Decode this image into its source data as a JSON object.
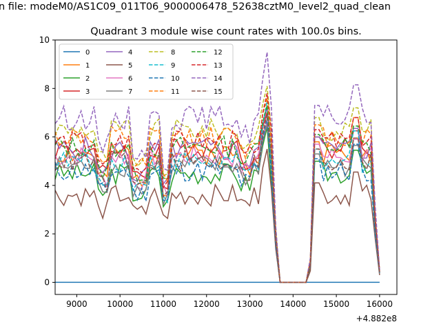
{
  "chart_data": {
    "type": "line",
    "suptitle": "n file: modeM0/AS1C09_011T06_9000006478_52638cztM0_level2_quad_clean",
    "title": "Quadrant 3 module wise count rates with 100.0s bins.",
    "xlabel": "",
    "ylabel": "",
    "offset_label": "+4.882e8",
    "xlim": [
      8500,
      16400
    ],
    "ylim": [
      -0.5,
      10
    ],
    "xticks": [
      9000,
      10000,
      11000,
      12000,
      13000,
      14000,
      15000,
      16000
    ],
    "xtick_labels": [
      "9000",
      "10000",
      "11000",
      "12000",
      "13000",
      "14000",
      "15000",
      "16000"
    ],
    "yticks": [
      0,
      2,
      4,
      6,
      8,
      10
    ],
    "ytick_labels": [
      "0",
      "2",
      "4",
      "6",
      "8",
      "10"
    ],
    "legend_position": "upper-left",
    "x_note": "x values are offsets from +4.882e8 s; 100 s bins from 8500 to 16000",
    "series": [
      {
        "name": "0",
        "color": "#1f77b4",
        "dashed": false,
        "level": 0.0,
        "amp": 0.0,
        "seed": 1,
        "max": 0.0
      },
      {
        "name": "1",
        "color": "#ff7f0e",
        "dashed": false,
        "level": 5.3,
        "amp": 0.45,
        "seed": 2,
        "max": 6.6
      },
      {
        "name": "2",
        "color": "#2ca02c",
        "dashed": false,
        "level": 4.5,
        "amp": 0.45,
        "seed": 3,
        "max": 6.4
      },
      {
        "name": "3",
        "color": "#d62728",
        "dashed": false,
        "level": 5.5,
        "amp": 0.45,
        "seed": 4,
        "max": 7.0
      },
      {
        "name": "4",
        "color": "#9467bd",
        "dashed": false,
        "level": 5.5,
        "amp": 0.5,
        "seed": 5,
        "max": 7.2
      },
      {
        "name": "5",
        "color": "#8c564b",
        "dashed": false,
        "level": 3.6,
        "amp": 0.45,
        "seed": 6,
        "max": 5.5
      },
      {
        "name": "6",
        "color": "#e377c2",
        "dashed": false,
        "level": 5.2,
        "amp": 0.45,
        "seed": 7,
        "max": 6.6
      },
      {
        "name": "7",
        "color": "#7f7f7f",
        "dashed": false,
        "level": 4.8,
        "amp": 0.45,
        "seed": 8,
        "max": 6.5
      },
      {
        "name": "8",
        "color": "#bcbd22",
        "dashed": true,
        "level": 6.3,
        "amp": 0.45,
        "seed": 9,
        "max": 8.1
      },
      {
        "name": "9",
        "color": "#17becf",
        "dashed": true,
        "level": 5.0,
        "amp": 0.45,
        "seed": 10,
        "max": 7.5
      },
      {
        "name": "10",
        "color": "#1f77b4",
        "dashed": true,
        "level": 4.6,
        "amp": 0.45,
        "seed": 11,
        "max": 6.8
      },
      {
        "name": "11",
        "color": "#ff7f0e",
        "dashed": true,
        "level": 6.0,
        "amp": 0.45,
        "seed": 12,
        "max": 7.6
      },
      {
        "name": "12",
        "color": "#2ca02c",
        "dashed": true,
        "level": 5.6,
        "amp": 0.45,
        "seed": 13,
        "max": 7.3
      },
      {
        "name": "13",
        "color": "#d62728",
        "dashed": true,
        "level": 5.8,
        "amp": 0.45,
        "seed": 14,
        "max": 7.8
      },
      {
        "name": "14",
        "color": "#9467bd",
        "dashed": true,
        "level": 6.8,
        "amp": 0.5,
        "seed": 15,
        "max": 9.5
      },
      {
        "name": "15",
        "color": "#8c564b",
        "dashed": true,
        "level": 5.0,
        "amp": 0.45,
        "seed": 16,
        "max": 6.9
      }
    ]
  }
}
